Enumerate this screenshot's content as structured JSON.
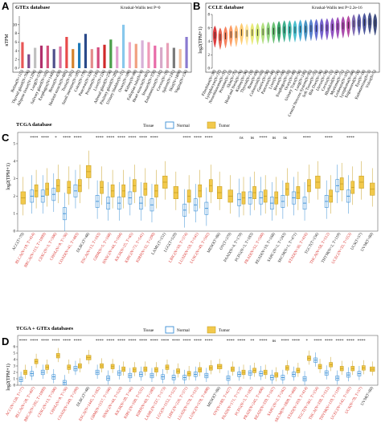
{
  "panels": {
    "A": {
      "letter": "A",
      "title": "GTEx database",
      "stat": "Kruskal-Wallis test P=0",
      "ylabel": "nTPM"
    },
    "B": {
      "letter": "B",
      "title": "CCLE database",
      "stat": "Kruskal-Wallis test P=2.2e-16",
      "ylabel": "log2(TPM+1)"
    },
    "C": {
      "letter": "C",
      "title": "TCGA database",
      "ylabel": "log2(TPM+1)",
      "legend_title": "Tissue",
      "legend_normal": "Normal",
      "legend_tumor": "Tumor"
    },
    "D": {
      "letter": "D",
      "title": "TCGA + GTEx databases",
      "ylabel": "log2(TPM+1)",
      "legend_title": "Tissue",
      "legend_normal": "Normal",
      "legend_tumor": "Tumor"
    }
  },
  "colors": {
    "normal": "#3a8fd6",
    "tumor": "#f2c94c",
    "sig_red": "#d9302c"
  },
  "chart_data": [
    {
      "panel": "A",
      "type": "bar",
      "categories": [
        "Retina(N=115)",
        "Thyroid gland(N=766)",
        "Adipose tissue(N=1204)",
        "Lung(N=578)",
        "Salivary gland(N=162)",
        "Esophagus(N=1445)",
        "Breast(N=459)",
        "Skeletal muscle(N=881)",
        "Testis(N=361)",
        "Small intestine(N=187)",
        "Colon(N=779)",
        "Pancreas(N=328)",
        "Prostate(N=245)",
        "Liver(N=226)",
        "Adrenal gland(N=258)",
        "Pituitary gland(N=283)",
        "Urinary bladder(N=21)",
        "Ovary(N=180)",
        "Kidney(N=89)",
        "Fallopian tube(N=9)",
        "Heart muscle(N=861)",
        "Stomach(N=359)",
        "Endometrium(N=142)",
        "Cervix(N=19)",
        "Spleen(N=241)",
        "Skin(N=1809)",
        "Vagina(N=156)"
      ],
      "values": [
        6.0,
        3.2,
        4.7,
        5.2,
        5.2,
        4.4,
        5.0,
        7.2,
        4.4,
        5.8,
        7.9,
        4.4,
        4.8,
        5.4,
        6.6,
        5.0,
        10.0,
        6.0,
        5.6,
        6.4,
        6.0,
        5.2,
        4.8,
        5.8,
        4.7,
        4.4,
        7.2
      ],
      "colors": [
        "#e85656",
        "#7a4a8c",
        "#c0c0c0",
        "#b0306c",
        "#d24f7a",
        "#4f4f8c",
        "#d870a0",
        "#e84a4a",
        "#d4822c",
        "#1f7ab8",
        "#2a4a8a",
        "#e48b8b",
        "#d44a7c",
        "#d02a2a",
        "#4a9e4a",
        "#e2a0d0",
        "#88c8ec",
        "#f0a8c8",
        "#f0a080",
        "#d8b0d8",
        "#f09ab8",
        "#e86aa8",
        "#d8a8c8",
        "#e8a0b8",
        "#7a7a7a",
        "#f0c0a0",
        "#8a7ad0"
      ],
      "ylim": [
        0,
        12
      ]
    },
    {
      "panel": "B",
      "type": "violin",
      "categories": [
        "Fibroblast(N=39)",
        "Lymphocyte(N=37)",
        "Neuroblastoma(N=37)",
        "Prostate(N=13)",
        "Skin(N=75)",
        "Head and Neck(N=76)",
        "Kidney(N=36)",
        "Thyroid(N=19)",
        "Bone(N=60)",
        "Colorectal(N=63)",
        "Gastric(N=38)",
        "Pancreas(N=44)",
        "Liver(N=24)",
        "Breast(N=60)",
        "Esophagus(N=33)",
        "Ovary(N=49)",
        "Urinary Tract(N=34)",
        "Lung(N=245)",
        "Central Nervous System(N=95)",
        "Soft Tissue(N=55)",
        "Bile Duct(N=36)",
        "Uterus(N=34)",
        "Cervix(N=15)",
        "Rhabdoid(N=16)",
        "Myeloma(N=51)",
        "Leukemia(N=101)",
        "Lymphoma(N=84)",
        "Engineered(N=18)",
        "Eye(N=18)",
        "Endometrium(N=3)",
        "Vulva(N=5)"
      ],
      "medians": [
        4.9,
        4.6,
        4.8,
        5.0,
        5.0,
        5.3,
        5.2,
        5.3,
        5.3,
        5.4,
        5.5,
        5.5,
        5.6,
        5.7,
        5.7,
        5.7,
        5.8,
        5.8,
        5.9,
        5.9,
        6.0,
        6.0,
        6.1,
        6.2,
        6.3,
        6.4,
        6.6,
        6.7,
        6.8,
        6.9,
        6.7
      ],
      "ylim": [
        0,
        8
      ]
    },
    {
      "panel": "C",
      "type": "box",
      "categories": [
        "ACC(T=79)",
        "BLCA(N=19, T=414)",
        "BRCA(N=113, T=1099)",
        "CESC(N=3, T=306)",
        "CHOL(N=9, T=36)",
        "COAD(N=41, T=483)",
        "DLBC(T=48)",
        "ESCA(N=13, T=163)",
        "GBM(N=5, T=168)",
        "HNSC(N=44, T=504)",
        "KICH(N=25, T=65)",
        "KIRC(N=72, T=541)",
        "KIRP(N=32, T=290)",
        "LAML(T=151)",
        "LGG(T=529)",
        "LIHC(N=50, T=374)",
        "LUAD(N=59, T=541)",
        "LUSC(N=49, T=502)",
        "MESO(T=86)",
        "OV(T=379)",
        "PAAD(N=4, T=179)",
        "PCPG(N=3, T=183)",
        "PRAD(N=52, T=500)",
        "READ(N=10, T=168)",
        "SARC(N=2, T=263)",
        "SKCM(N=1, T=471)",
        "STAD(N=36, T=416)",
        "TGCT(T=156)",
        "THCA(N=58, T=512)",
        "THYM(N=2, T=119)",
        "UCEC(N=35, T=553)",
        "UCS(T=57)",
        "UVM(T=80)"
      ],
      "significance": [
        "",
        "****",
        "****",
        "*",
        "****",
        "****",
        "",
        "****",
        "****",
        "****",
        "****",
        "****",
        "****",
        "",
        "",
        "****",
        "****",
        "****",
        "",
        "",
        "ns",
        "ns",
        "****",
        "ns",
        "ns",
        "",
        "****",
        "",
        "****",
        "",
        "****",
        "",
        ""
      ],
      "normal_median": [
        null,
        2.0,
        2.0,
        2.1,
        1.0,
        2.3,
        null,
        1.7,
        1.6,
        1.6,
        1.9,
        1.6,
        1.5,
        null,
        null,
        1.2,
        1.5,
        1.3,
        null,
        null,
        1.8,
        1.9,
        1.9,
        1.6,
        1.7,
        1.9,
        1.6,
        null,
        1.7,
        2.6,
        2.0,
        null,
        null
      ],
      "tumor_median": [
        1.9,
        2.3,
        2.4,
        2.6,
        2.5,
        2.6,
        3.4,
        2.5,
        2.3,
        2.3,
        2.6,
        2.4,
        2.3,
        2.8,
        2.2,
        2.0,
        2.3,
        2.6,
        2.2,
        2.0,
        1.9,
        2.2,
        2.0,
        1.9,
        2.4,
        2.2,
        2.6,
        2.8,
        2.0,
        2.7,
        2.5,
        2.8,
        2.4
      ],
      "red_labels": [
        false,
        true,
        true,
        true,
        true,
        true,
        false,
        true,
        true,
        true,
        true,
        true,
        true,
        false,
        false,
        true,
        true,
        true,
        false,
        false,
        false,
        false,
        true,
        false,
        false,
        false,
        true,
        false,
        true,
        false,
        true,
        false,
        false
      ],
      "ylim": [
        0,
        5
      ]
    },
    {
      "panel": "D",
      "type": "box",
      "categories": [
        "ACC(N=128, T=77)",
        "BLCA(N=28, T=407)",
        "BRCA(N=292, T=1099)",
        "CESC(N=13, T=306)",
        "CHOL(N=9, T=36)",
        "COAD(N=349, T=290)",
        "DLBC(T=48)",
        "ESCA(N=1445, T=182)",
        "GBM(N=1157, T=166)",
        "HNSC(N=44, T=520)",
        "KICH(N=28, T=66)",
        "KIRC(N=100, T=531)",
        "KIRP(N=60, T=289)",
        "LAML(N=337, T=173)",
        "LGG(N=1152, T=523)",
        "LIHC(N=226, T=371)",
        "LUAD(N=578, T=515)",
        "LUSC(N=578, T=498)",
        "MESO(T=86)",
        "OV(N=180, T=427)",
        "PAAD(N=171, T=179)",
        "PCPG(N=3, T=182)",
        "PRAD(N=245, T=496)",
        "READ(N=339, T=167)",
        "SARC(N=2, T=262)",
        "SKCM(N=1809, T=469)",
        "STAD(N=359, T=414)",
        "TGCT(N=361, T=154)",
        "THCA(N=338, T=512)",
        "THYM(N=119, T=119)",
        "UCEC(N=142, T=181)",
        "UCS(N=78, T=57)",
        "UVM(T=80)"
      ],
      "significance": [
        "****",
        "****",
        "****",
        "****",
        "****",
        "****",
        "",
        "****",
        "****",
        "****",
        "****",
        "****",
        "****",
        "****",
        "****",
        "****",
        "****",
        "****",
        "",
        "****",
        "****",
        "**",
        "****",
        "ns",
        "****",
        "****",
        "*",
        "****",
        "****",
        "****",
        "****",
        "****",
        ""
      ],
      "normal_median": [
        0.9,
        1.8,
        2.0,
        1.3,
        0.4,
        2.6,
        null,
        2.0,
        1.1,
        1.9,
        1.5,
        1.7,
        1.5,
        1.3,
        1.2,
        1.2,
        1.7,
        1.5,
        null,
        1.1,
        1.7,
        1.9,
        1.8,
        1.2,
        1.2,
        1.7,
        1.0,
        3.9,
        1.9,
        1.1,
        1.6,
        1.8,
        null
      ],
      "tumor_median": [
        2.0,
        3.7,
        2.8,
        4.6,
        2.8,
        3.0,
        4.3,
        3.0,
        2.9,
        2.5,
        2.4,
        2.5,
        2.4,
        2.8,
        2.2,
        1.8,
        2.4,
        2.7,
        2.9,
        2.5,
        2.0,
        2.3,
        2.0,
        1.6,
        2.7,
        2.3,
        4.2,
        2.9,
        3.2,
        2.6,
        2.6,
        2.7,
        2.5
      ],
      "red_labels": [
        true,
        true,
        true,
        true,
        true,
        true,
        false,
        true,
        true,
        true,
        true,
        true,
        true,
        true,
        true,
        true,
        true,
        true,
        false,
        true,
        true,
        true,
        true,
        true,
        true,
        true,
        true,
        true,
        true,
        true,
        true,
        true,
        false
      ],
      "ylim": [
        0,
        6
      ]
    }
  ]
}
